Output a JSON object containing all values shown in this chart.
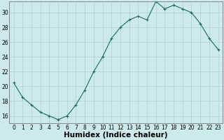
{
  "x": [
    0,
    1,
    2,
    3,
    4,
    5,
    6,
    7,
    8,
    9,
    10,
    11,
    12,
    13,
    14,
    15,
    16,
    17,
    18,
    19,
    20,
    21,
    22,
    23
  ],
  "y": [
    20.5,
    18.5,
    17.5,
    16.5,
    16.0,
    15.5,
    16.0,
    17.5,
    19.5,
    22.0,
    24.0,
    26.5,
    28.0,
    29.0,
    29.5,
    29.0,
    31.5,
    30.5,
    31.0,
    30.5,
    30.0,
    28.5,
    26.5,
    25.0
  ],
  "line_color": "#1a6b5a",
  "marker": "+",
  "marker_size": 3.0,
  "bg_color": "#cceaea",
  "grid_color": "#b0d0d0",
  "xlabel": "Humidex (Indice chaleur)",
  "xlim": [
    -0.5,
    23.5
  ],
  "ylim": [
    15,
    31.5
  ],
  "yticks": [
    16,
    18,
    20,
    22,
    24,
    26,
    28,
    30
  ],
  "xticks": [
    0,
    1,
    2,
    3,
    4,
    5,
    6,
    7,
    8,
    9,
    10,
    11,
    12,
    13,
    14,
    15,
    16,
    17,
    18,
    19,
    20,
    21,
    22,
    23
  ],
  "tick_fontsize": 5.5,
  "xlabel_fontsize": 7.5
}
